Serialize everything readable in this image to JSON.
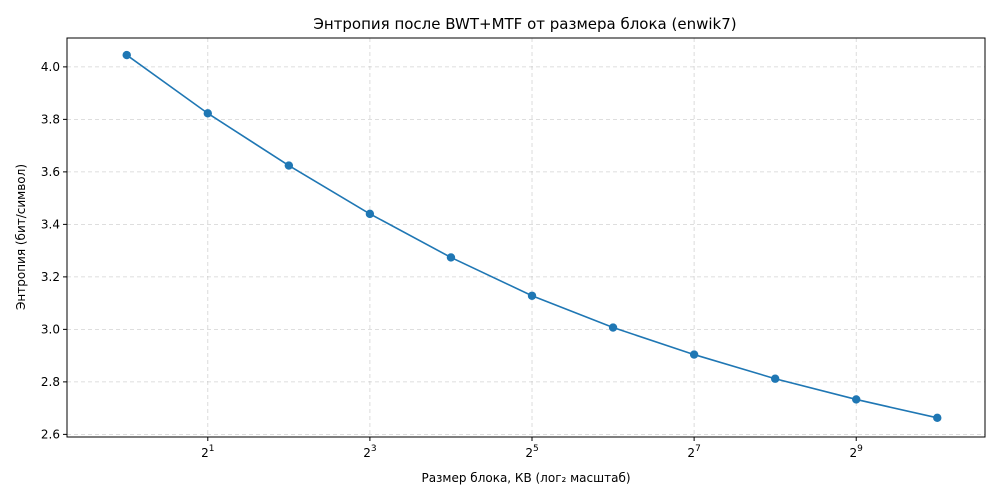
{
  "chart_data": {
    "type": "line",
    "title": "Энтропия после BWT+MTF от размера блока (enwik7)",
    "xlabel": "Размер блока, КВ (лог₂ масштаб)",
    "ylabel": "Энтропия (бит/символ)",
    "x_scale": "log2",
    "x_ticks": [
      {
        "base": "2",
        "exp": "1",
        "value": 2
      },
      {
        "base": "2",
        "exp": "3",
        "value": 8
      },
      {
        "base": "2",
        "exp": "5",
        "value": 32
      },
      {
        "base": "2",
        "exp": "7",
        "value": 128
      },
      {
        "base": "2",
        "exp": "9",
        "value": 512
      }
    ],
    "y_ticks": [
      "2.6",
      "2.8",
      "3.0",
      "3.2",
      "3.4",
      "3.6",
      "3.8",
      "4.0"
    ],
    "xlim": [
      0.6,
      1540
    ],
    "ylim": [
      2.59,
      4.11
    ],
    "grid": true,
    "colors": {
      "series": "#1f77b4"
    },
    "series": [
      {
        "x": [
          1,
          2,
          4,
          8,
          16,
          32,
          64,
          128,
          256,
          512,
          1024
        ],
        "values": [
          4.045,
          3.823,
          3.624,
          3.44,
          3.274,
          3.128,
          3.007,
          2.904,
          2.812,
          2.733,
          2.663
        ]
      }
    ]
  }
}
